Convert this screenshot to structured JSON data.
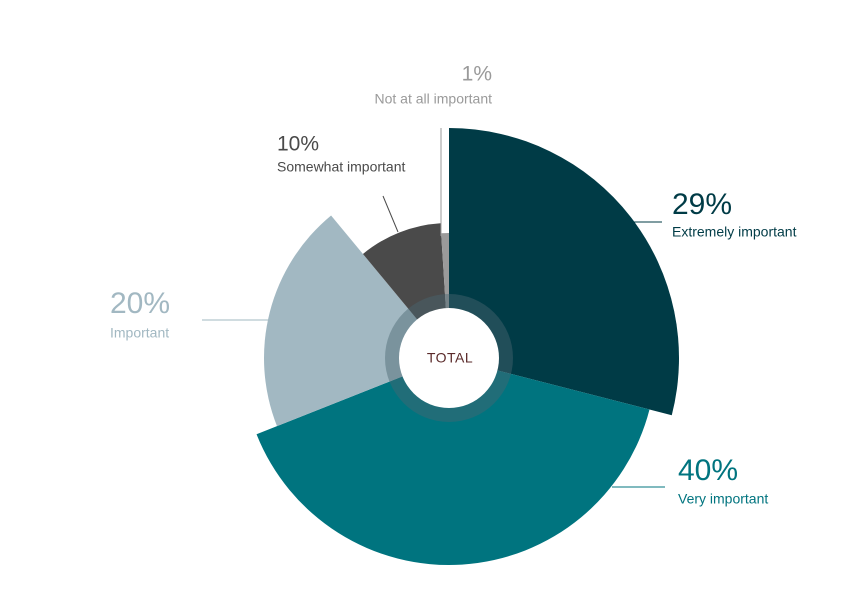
{
  "chart_data": {
    "type": "pie",
    "center_label": "TOTAL",
    "categories": [
      "Extremely important",
      "Very important",
      "Important",
      "Somewhat important",
      "Not at all important"
    ],
    "values": [
      29,
      40,
      20,
      10,
      1
    ],
    "value_labels": [
      "29%",
      "40%",
      "20%",
      "10%",
      "1%"
    ],
    "colors": [
      "#003b46",
      "#00747f",
      "#a2b8c2",
      "#4a4a4a",
      "#9a9a9a"
    ]
  }
}
